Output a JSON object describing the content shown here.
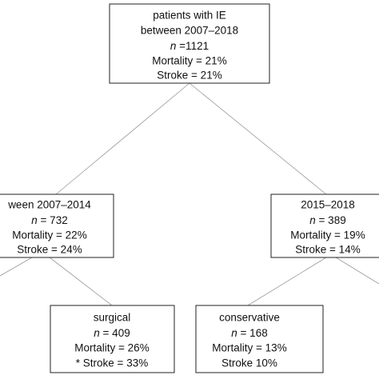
{
  "nodes": [
    {
      "lines": [
        "patients with IE",
        "between 2007–2018",
        {
          "var": "n",
          "text": " =1121"
        },
        "Mortality = 21%",
        "Stroke = 21%"
      ]
    },
    {
      "lines": [
        "ween 2007–2014",
        {
          "var": "n",
          "text": " = 732"
        },
        "Mortality = 22%",
        "Stroke = 24%"
      ]
    },
    {
      "lines": [
        "2015–2018",
        {
          "var": "n",
          "text": " = 389"
        },
        "Mortality = 19%",
        "Stroke = 14%"
      ]
    },
    {
      "lines": [
        "surgical",
        {
          "var": "n",
          "text": " = 409"
        },
        "Mortality = 26%",
        "* Stroke = 33%"
      ]
    },
    {
      "lines": [
        "conservative",
        {
          "var": "n",
          "text": " = 168"
        },
        "Mortality = 13%",
        "Stroke 10%"
      ]
    }
  ]
}
